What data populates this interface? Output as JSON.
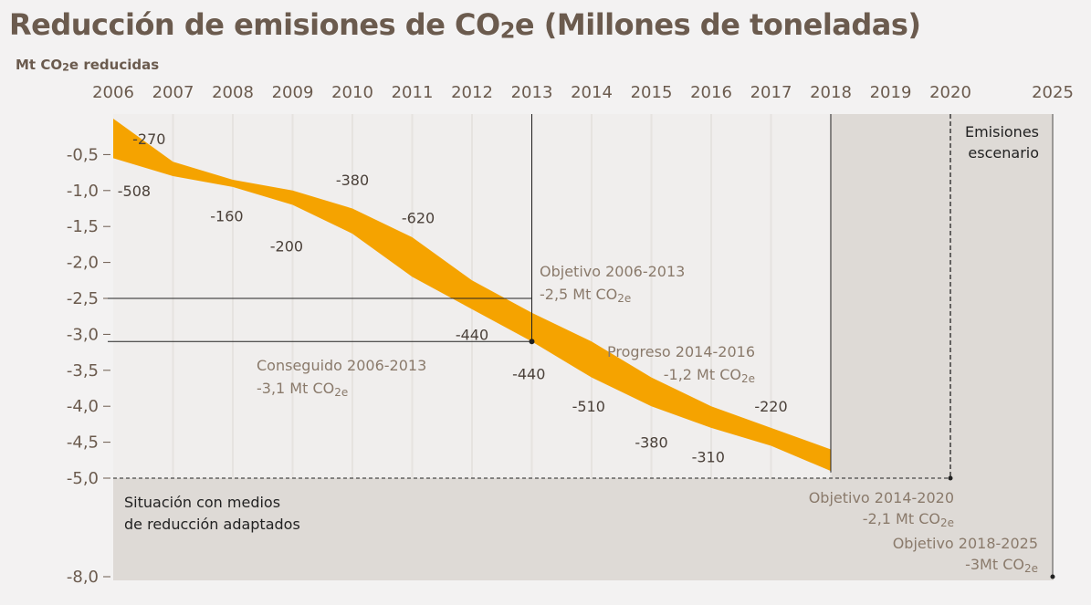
{
  "title": "Reducción de emisiones de CO2e (Millones de toneladas)",
  "unit_label": "Mt CO2e reducidas",
  "chart_data": {
    "type": "area",
    "x_ticks": [
      "2006",
      "2007",
      "2008",
      "2009",
      "2010",
      "2011",
      "2012",
      "2013",
      "2014",
      "2015",
      "2016",
      "2017",
      "2018",
      "2019",
      "2020",
      "2025"
    ],
    "y_ticks": [
      "-0,5",
      "-1,0",
      "-1,5",
      "-2,0",
      "-2,5",
      "-3,0",
      "-3,5",
      "-4,0",
      "-4,5",
      "-5,0",
      "-8,0"
    ],
    "band": {
      "x": [
        2006,
        2007,
        2008,
        2009,
        2010,
        2011,
        2012,
        2013,
        2014,
        2015,
        2016,
        2017,
        2018
      ],
      "upper": [
        0.0,
        -0.6,
        -0.85,
        -1.0,
        -1.25,
        -1.65,
        -2.25,
        -2.7,
        -3.1,
        -3.6,
        -4.0,
        -4.3,
        -4.6
      ],
      "lower": [
        -0.55,
        -0.8,
        -0.95,
        -1.2,
        -1.6,
        -2.2,
        -2.65,
        -3.1,
        -3.6,
        -4.0,
        -4.3,
        -4.55,
        -4.9
      ]
    },
    "deltas": [
      {
        "text": "-270",
        "x": 2006.6,
        "y": -0.28
      },
      {
        "text": "-508",
        "x": 2006.35,
        "y": -1.0
      },
      {
        "text": "-160",
        "x": 2007.9,
        "y": -1.35
      },
      {
        "text": "-200",
        "x": 2008.9,
        "y": -1.77
      },
      {
        "text": "-380",
        "x": 2010.0,
        "y": -0.85
      },
      {
        "text": "-620",
        "x": 2011.1,
        "y": -1.38
      },
      {
        "text": "-440",
        "x": 2012.0,
        "y": -3.0
      },
      {
        "text": "-440",
        "x": 2012.95,
        "y": -3.55
      },
      {
        "text": "-510",
        "x": 2013.95,
        "y": -4.0
      },
      {
        "text": "-380",
        "x": 2015.0,
        "y": -4.5
      },
      {
        "text": "-310",
        "x": 2015.95,
        "y": -4.7
      },
      {
        "text": "-220",
        "x": 2017.0,
        "y": -4.0
      }
    ],
    "annotations": {
      "objetivo_2013": [
        "Objetivo 2006-2013",
        "-2,5 Mt CO2e"
      ],
      "conseguido_2013": [
        "Conseguido 2006-2013",
        "-3,1 Mt CO2e"
      ],
      "progreso": [
        "Progreso 2014-2016",
        "-1,2 Mt CO2e"
      ],
      "objetivo_2020": [
        "Objetivo 2014-2020",
        "-2,1 Mt CO2e"
      ],
      "objetivo_2025": [
        "Objetivo 2018-2025",
        "-3Mt CO2e"
      ],
      "escenario": [
        "Emisiones",
        "escenario"
      ],
      "situacion": [
        "Situación con medios",
        "de reducción adaptados"
      ]
    },
    "reference_lines": {
      "objetivo_2013": -2.5,
      "conseguido_2013": -3.1
    },
    "colors": {
      "band": "#f5a300",
      "background": "#f3f2f2",
      "plot": "#f0eeed",
      "shade": "#dedad6",
      "text": "#6b5b4e",
      "annotation": "#8a7a6b"
    }
  }
}
